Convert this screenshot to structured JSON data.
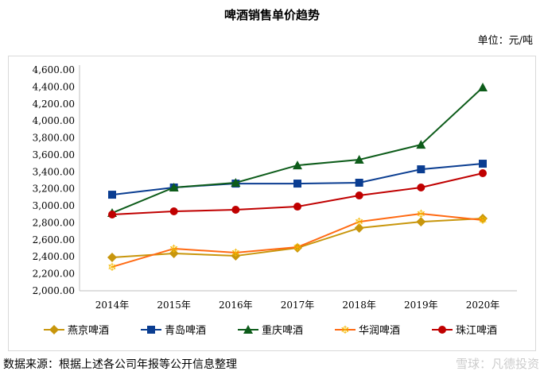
{
  "title": "啤酒销售单价趋势",
  "unit": "单位：元/吨",
  "source": "数据来源：根据上述各公司年报等公开信息整理",
  "watermark": "雪球：凡德投资",
  "chart_data": {
    "type": "line",
    "title": "啤酒销售单价趋势",
    "categories": [
      "2014年",
      "2015年",
      "2016年",
      "2017年",
      "2018年",
      "2019年",
      "2020年"
    ],
    "ylim": [
      2000,
      4600
    ],
    "yticks": [
      "2,000.00",
      "2,200.00",
      "2,400.00",
      "2,600.00",
      "2,800.00",
      "3,000.00",
      "3,200.00",
      "3,400.00",
      "3,600.00",
      "3,800.00",
      "4,000.00",
      "4,200.00",
      "4,400.00",
      "4,600.00"
    ],
    "grid": false,
    "legend": "bottom",
    "series": [
      {
        "name": "燕京啤酒",
        "color": "#c8960c",
        "marker": "diamond",
        "values": [
          2393,
          2440,
          2411,
          2505,
          2739,
          2813,
          2851
        ]
      },
      {
        "name": "青岛啤酒",
        "color": "#0a3d91",
        "marker": "square",
        "values": [
          3131,
          3216,
          3262,
          3262,
          3272,
          3430,
          3496
        ]
      },
      {
        "name": "重庆啤酒",
        "color": "#0d5c1a",
        "marker": "triangle",
        "values": [
          2916,
          3216,
          3272,
          3477,
          3543,
          3720,
          4394
        ]
      },
      {
        "name": "华润啤酒",
        "color": "#ff6a13",
        "marker": "snowflake",
        "values": [
          2281,
          2496,
          2449,
          2514,
          2813,
          2907,
          2832
        ]
      },
      {
        "name": "珠江啤酒",
        "color": "#c00000",
        "marker": "circle",
        "values": [
          2898,
          2935,
          2954,
          2991,
          3122,
          3216,
          3384
        ]
      }
    ]
  }
}
